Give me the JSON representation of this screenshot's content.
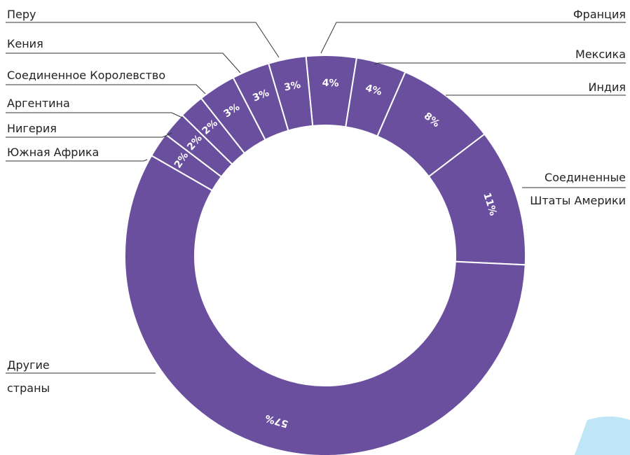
{
  "chart_data": {
    "type": "donut",
    "categories": [
      "Франция",
      "Мексика",
      "Индия",
      "Соединенные Штаты Америки",
      "Другие страны",
      "Южная Африка",
      "Нигерия",
      "Аргентина",
      "Соединенное Королевство",
      "Кения",
      "Перу"
    ],
    "values": [
      4,
      4,
      8,
      11,
      57,
      2,
      2,
      2,
      3,
      3,
      3
    ],
    "value_labels": [
      "4%",
      "4%",
      "8%",
      "11%",
      "57%",
      "2%",
      "2%",
      "2%",
      "3%",
      "3%",
      "3%"
    ],
    "color": "#6a4f9f"
  }
}
